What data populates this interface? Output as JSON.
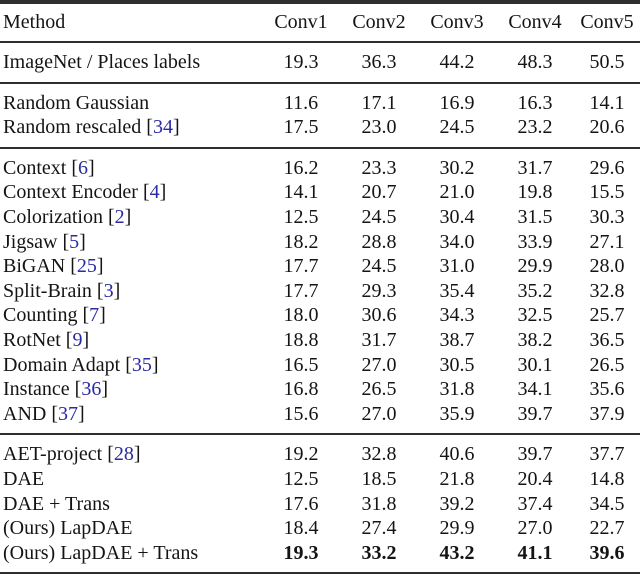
{
  "table": {
    "columns": [
      "Method",
      "Conv1",
      "Conv2",
      "Conv3",
      "Conv4",
      "Conv5"
    ],
    "citation_color": "#2a2aa4",
    "sections": [
      {
        "rows": [
          {
            "method": "ImageNet / Places labels",
            "cite": null,
            "values": [
              "19.3",
              "36.3",
              "44.2",
              "48.3",
              "50.5"
            ],
            "bold_values": false
          }
        ]
      },
      {
        "rows": [
          {
            "method": "Random Gaussian",
            "cite": null,
            "values": [
              "11.6",
              "17.1",
              "16.9",
              "16.3",
              "14.1"
            ],
            "bold_values": false
          },
          {
            "method": "Random rescaled",
            "cite": "34",
            "values": [
              "17.5",
              "23.0",
              "24.5",
              "23.2",
              "20.6"
            ],
            "bold_values": false
          }
        ]
      },
      {
        "rows": [
          {
            "method": "Context",
            "cite": "6",
            "values": [
              "16.2",
              "23.3",
              "30.2",
              "31.7",
              "29.6"
            ],
            "bold_values": false
          },
          {
            "method": "Context Encoder",
            "cite": "4",
            "values": [
              "14.1",
              "20.7",
              "21.0",
              "19.8",
              "15.5"
            ],
            "bold_values": false
          },
          {
            "method": "Colorization",
            "cite": "2",
            "values": [
              "12.5",
              "24.5",
              "30.4",
              "31.5",
              "30.3"
            ],
            "bold_values": false
          },
          {
            "method": "Jigsaw",
            "cite": "5",
            "values": [
              "18.2",
              "28.8",
              "34.0",
              "33.9",
              "27.1"
            ],
            "bold_values": false
          },
          {
            "method": "BiGAN",
            "cite": "25",
            "values": [
              "17.7",
              "24.5",
              "31.0",
              "29.9",
              "28.0"
            ],
            "bold_values": false
          },
          {
            "method": "Split-Brain",
            "cite": "3",
            "values": [
              "17.7",
              "29.3",
              "35.4",
              "35.2",
              "32.8"
            ],
            "bold_values": false
          },
          {
            "method": "Counting",
            "cite": "7",
            "values": [
              "18.0",
              "30.6",
              "34.3",
              "32.5",
              "25.7"
            ],
            "bold_values": false
          },
          {
            "method": "RotNet",
            "cite": "9",
            "values": [
              "18.8",
              "31.7",
              "38.7",
              "38.2",
              "36.5"
            ],
            "bold_values": false
          },
          {
            "method": "Domain Adapt",
            "cite": "35",
            "values": [
              "16.5",
              "27.0",
              "30.5",
              "30.1",
              "26.5"
            ],
            "bold_values": false
          },
          {
            "method": "Instance",
            "cite": "36",
            "values": [
              "16.8",
              "26.5",
              "31.8",
              "34.1",
              "35.6"
            ],
            "bold_values": false
          },
          {
            "method": "AND",
            "cite": "37",
            "values": [
              "15.6",
              "27.0",
              "35.9",
              "39.7",
              "37.9"
            ],
            "bold_values": false
          }
        ]
      },
      {
        "rows": [
          {
            "method": "AET-project",
            "cite": "28",
            "values": [
              "19.2",
              "32.8",
              "40.6",
              "39.7",
              "37.7"
            ],
            "bold_values": false
          },
          {
            "method": "DAE",
            "cite": null,
            "values": [
              "12.5",
              "18.5",
              "21.8",
              "20.4",
              "14.8"
            ],
            "bold_values": false
          },
          {
            "method": "DAE + Trans",
            "cite": null,
            "values": [
              "17.6",
              "31.8",
              "39.2",
              "37.4",
              "34.5"
            ],
            "bold_values": false
          },
          {
            "method": "(Ours) LapDAE",
            "cite": null,
            "values": [
              "18.4",
              "27.4",
              "29.9",
              "27.0",
              "22.7"
            ],
            "bold_values": false
          },
          {
            "method": "(Ours) LapDAE + Trans",
            "cite": null,
            "values": [
              "19.3",
              "33.2",
              "43.2",
              "41.1",
              "39.6"
            ],
            "bold_values": true
          }
        ]
      }
    ]
  }
}
